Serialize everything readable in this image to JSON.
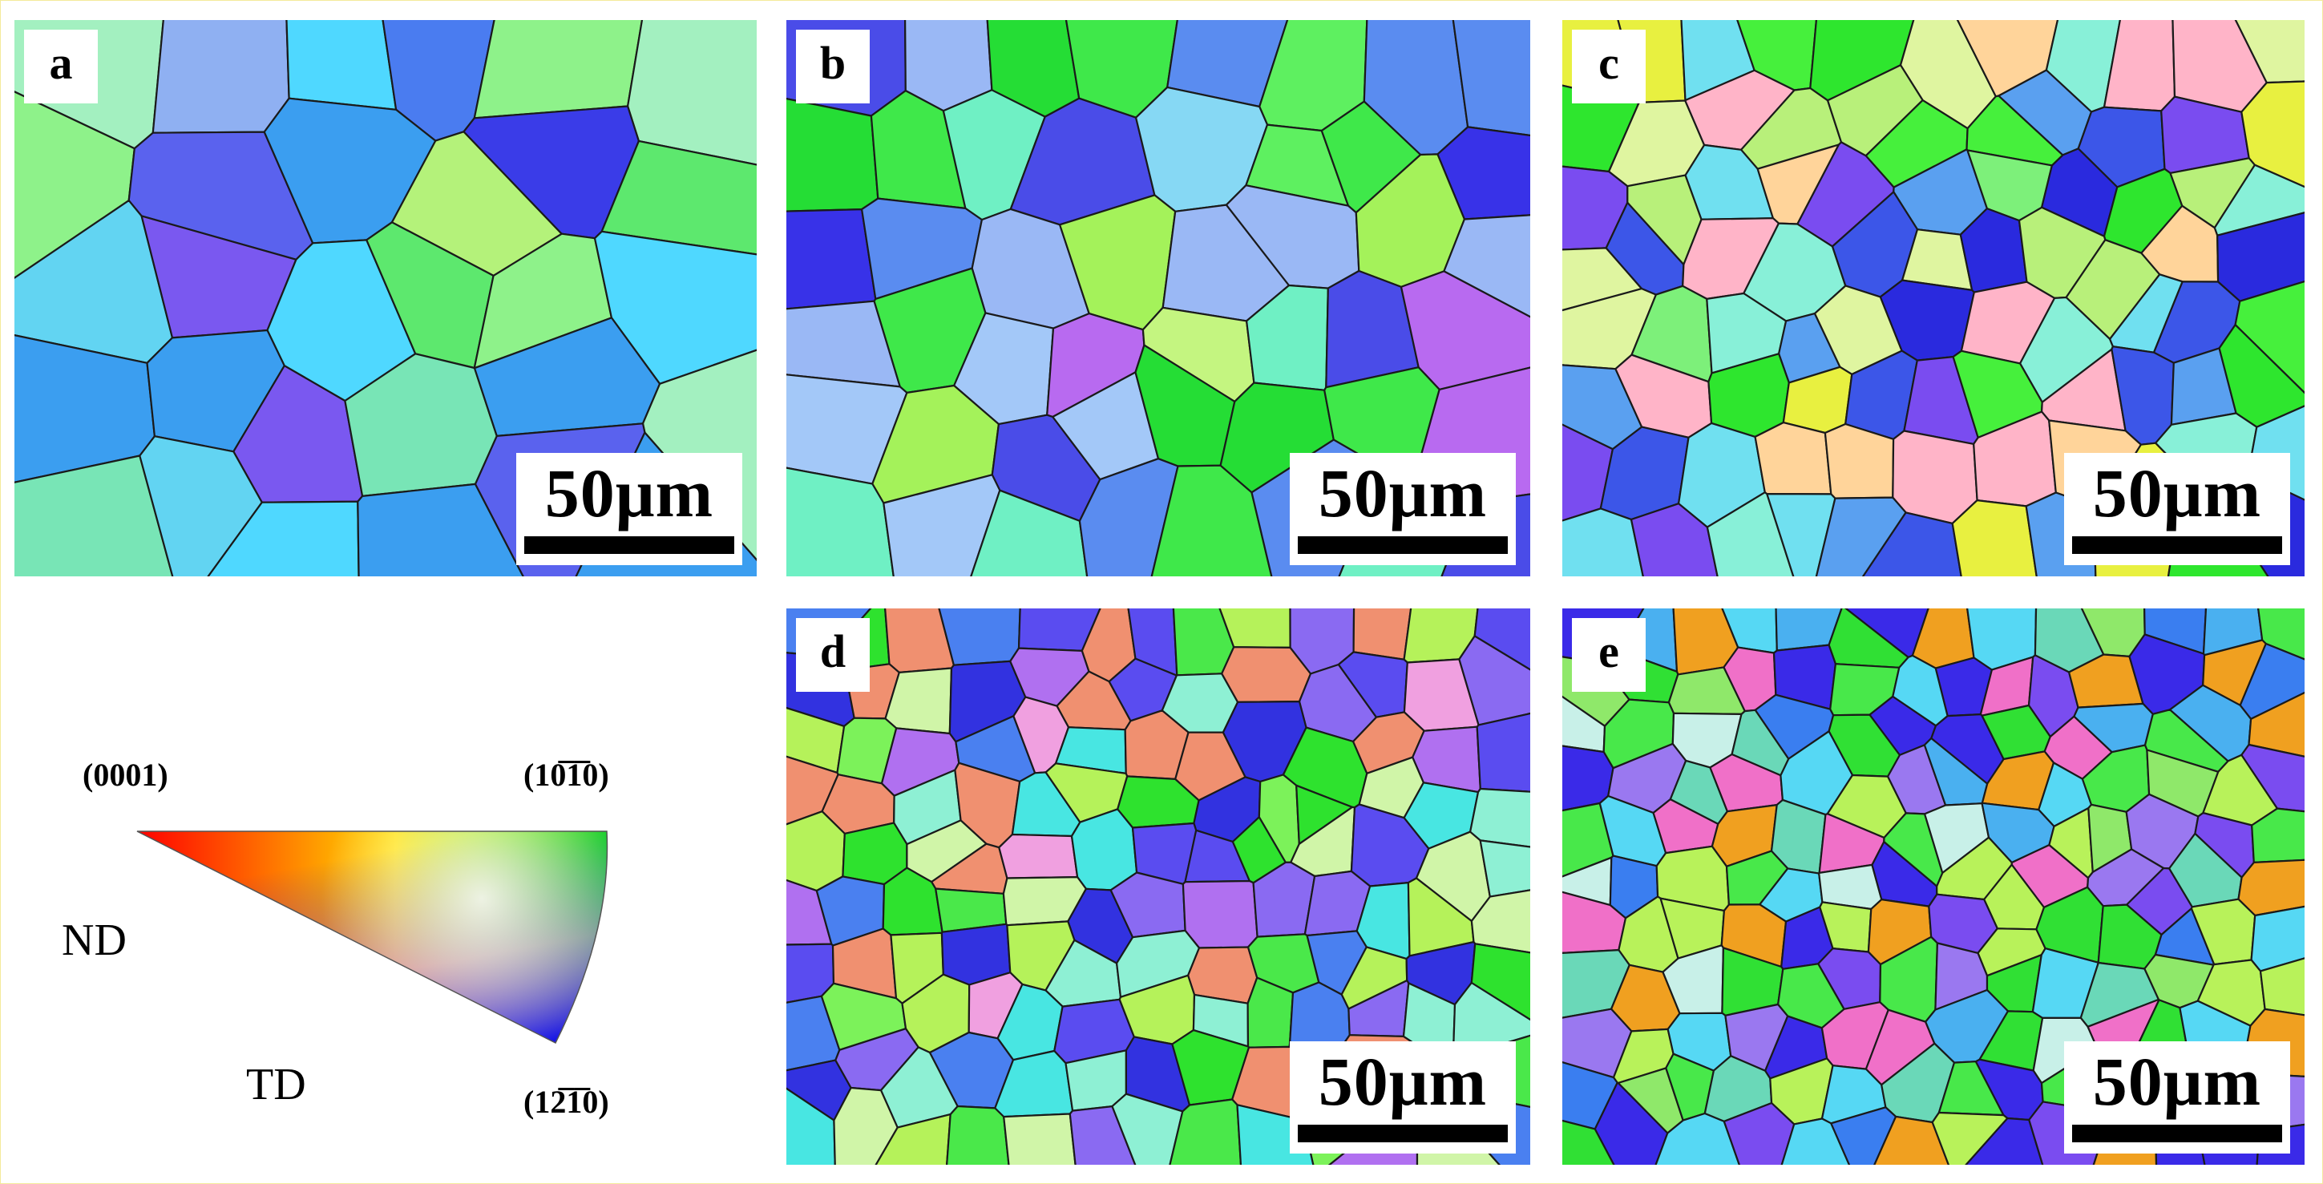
{
  "figure": {
    "panels": [
      {
        "id": "a",
        "label": "a",
        "scale": "50μm",
        "palette": [
          "#8ef28a",
          "#62d4f2",
          "#4a7cf0",
          "#8fb0f2",
          "#7a58f0",
          "#3a3ce8",
          "#5de86e",
          "#a3f0c0",
          "#4fd8ff",
          "#3b9ef0",
          "#9e8cf2",
          "#5a62ee",
          "#b4f27a",
          "#78e5b6"
        ]
      },
      {
        "id": "b",
        "label": "b",
        "scale": "50μm",
        "palette": [
          "#3fe84a",
          "#25dd35",
          "#5ef060",
          "#a3c8f8",
          "#9ab8f5",
          "#4a4ce8",
          "#3832e8",
          "#b86af0",
          "#c4f580",
          "#6ff0c4",
          "#86d8f4",
          "#a4f25a",
          "#5a8cf0",
          "#1e1ee0"
        ]
      },
      {
        "id": "c",
        "label": "c",
        "scale": "50μm",
        "palette": [
          "#2ee62e",
          "#46f03c",
          "#7df07a",
          "#b8f07a",
          "#dff5a0",
          "#70e0f0",
          "#88f0d8",
          "#3c56e8",
          "#7a4cf0",
          "#2a2ade",
          "#5aa0f0",
          "#e8f040",
          "#ffb4c8",
          "#ffd49a"
        ]
      },
      {
        "id": "d",
        "label": "d",
        "scale": "50μm",
        "palette": [
          "#4ae84a",
          "#2ee22e",
          "#7cf25a",
          "#b5f25a",
          "#5a4cf0",
          "#8a6af2",
          "#b070f0",
          "#48e6e2",
          "#8ef0d4",
          "#4a80f0",
          "#f09070",
          "#f0a0e0",
          "#3232e0",
          "#d0f5a8"
        ]
      },
      {
        "id": "e",
        "label": "e",
        "scale": "50μm",
        "palette": [
          "#48e84a",
          "#30e034",
          "#8fe86a",
          "#3a7ef0",
          "#4ab0f0",
          "#56d8f4",
          "#7a4cf0",
          "#3a2ae8",
          "#9a78f0",
          "#f070c8",
          "#f0a020",
          "#b8f25a",
          "#6ad8b8",
          "#c8f0e8"
        ]
      }
    ],
    "legend": {
      "pole_0001": "(0001)",
      "pole_10-10": "(10̅1̅0)",
      "pole_1-210": "(12̅1̅0)",
      "axis_nd": "ND",
      "axis_td": "TD"
    },
    "legend_colors": {
      "red": "#ff0000",
      "green": "#00e000",
      "blue": "#1010e8"
    }
  }
}
